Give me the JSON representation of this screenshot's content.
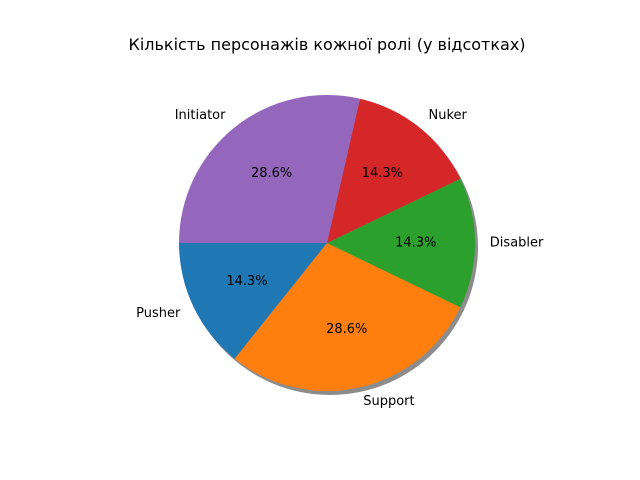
{
  "chart_data": {
    "type": "pie",
    "title": "Кількість персонажів кожної ролі (у відсотках)",
    "categories": [
      "Pusher",
      "Support",
      "Disabler",
      "Nuker",
      "Initiator"
    ],
    "values": [
      14.3,
      28.6,
      14.3,
      14.3,
      28.6
    ],
    "percent_labels": [
      "14.3%",
      "28.6%",
      "14.3%",
      "14.3%",
      "28.6%"
    ],
    "colors": [
      "#1f77b4",
      "#ff7f0e",
      "#2ca02c",
      "#d62728",
      "#9467bd"
    ],
    "start_angle_deg": 180,
    "direction": "counterclockwise",
    "shadow": true
  }
}
